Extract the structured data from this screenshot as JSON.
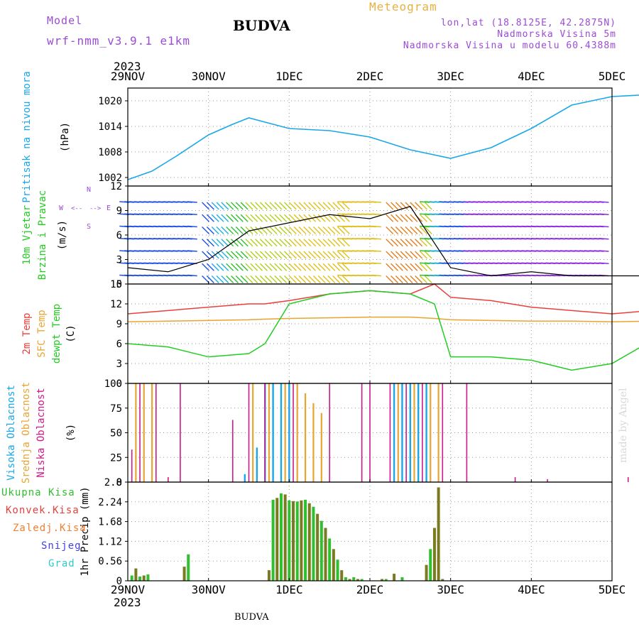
{
  "header": {
    "model_label": "Model",
    "model_name": "wrf-nmm_v3.9.1 e1km",
    "title": "BUDVA",
    "meteogram": "Meteogram",
    "lonlat": "lon,lat (18.8125E, 42.2875N)",
    "altitude": "Nadmorska Visina 5m",
    "model_altitude": "Nadmorska Visina u modelu 60.4388m",
    "year": "2023",
    "footer_title": "BUDVA",
    "credit": "made by Angel"
  },
  "colors": {
    "pressure": "#1aa7e8",
    "temp2m": "#e8403a",
    "sfc": "#e8a530",
    "dewpt": "#22cc22",
    "high": "#1aa7e8",
    "mid": "#e8a530",
    "low": "#cc1a8a",
    "ukupna": "#2fbf2f",
    "konvek": "#e8403a",
    "zaledj": "#f08030",
    "snijeg": "#4040e8",
    "grad": "#30c8c8",
    "precip_dark": "#7a7a20"
  },
  "time_axis": {
    "labels": [
      "29NOV",
      "30NOV",
      "1DEC",
      "2DEC",
      "3DEC",
      "4DEC",
      "5DEC"
    ]
  },
  "chart_data": [
    {
      "type": "line",
      "name": "pressure",
      "ylabel_1": "Pritisak na nivou mora",
      "ylabel_2": "(hPa)",
      "ylim": [
        1000,
        1023
      ],
      "yticks": [
        "1002",
        "1008",
        "1014",
        "1020"
      ],
      "ytick_values": [
        1002,
        1008,
        1014,
        1020
      ],
      "x": [
        0,
        0.3,
        0.6,
        1.0,
        1.3,
        1.5,
        1.8,
        2.0,
        2.5,
        3.0,
        3.5,
        4.0,
        4.5,
        5.0,
        5.5,
        6.0,
        6.5,
        6.8,
        7.0
      ],
      "series": [
        {
          "values": [
            1001.5,
            1003.5,
            1007,
            1012,
            1014.5,
            1016,
            1014.5,
            1013.5,
            1013,
            1011.5,
            1008.5,
            1006.5,
            1009,
            1013.5,
            1019,
            1021,
            1021.5,
            1020.5,
            1020.5
          ]
        }
      ]
    },
    {
      "type": "line",
      "name": "wind",
      "ylabel_1": "10m Vjetar",
      "ylabel_2": "Brzina i Pravac",
      "ylabel_3": "(m/s)",
      "compass": [
        "W",
        "<--",
        "-->",
        "E",
        "N",
        "S"
      ],
      "ylim": [
        0,
        12
      ],
      "yticks": [
        "0",
        "3",
        "6",
        "9",
        "12"
      ],
      "ytick_values": [
        0,
        3,
        6,
        9,
        12
      ],
      "x": [
        0,
        0.5,
        1.0,
        1.5,
        2.0,
        2.5,
        3.0,
        3.5,
        4.0,
        4.5,
        5.0,
        5.5,
        6.0,
        6.5,
        7.0
      ],
      "series": [
        {
          "values": [
            2,
            1.5,
            3,
            6.5,
            7.5,
            8.5,
            8,
            9.5,
            2,
            1,
            1.5,
            1,
            1,
            1,
            2.5
          ]
        }
      ]
    },
    {
      "type": "line",
      "name": "temperature",
      "ylabel_1": "2m Temp",
      "ylabel_2": "SFC Temp",
      "ylabel_3": "dewpt Temp",
      "ylabel_4": "(C)",
      "ylim": [
        0,
        15
      ],
      "yticks": [
        "0",
        "3",
        "6",
        "9",
        "12",
        "15"
      ],
      "ytick_values": [
        0,
        3,
        6,
        9,
        12,
        15
      ],
      "x": [
        0,
        0.5,
        1.0,
        1.5,
        1.7,
        2.0,
        2.5,
        3.0,
        3.5,
        3.8,
        4.0,
        4.5,
        5.0,
        5.5,
        6.0,
        6.5,
        7.0
      ],
      "series": [
        {
          "name": "2m Temp",
          "values": [
            10.5,
            11,
            11.5,
            12,
            12,
            12.5,
            13.5,
            14,
            13.5,
            15,
            13,
            12.5,
            11.5,
            11,
            10.5,
            11,
            10.5
          ]
        },
        {
          "name": "SFC Temp",
          "values": [
            9.3,
            9.4,
            9.5,
            9.6,
            9.7,
            9.8,
            9.9,
            10,
            10,
            9.8,
            9.6,
            9.5,
            9.4,
            9.4,
            9.3,
            9.4,
            9.3
          ]
        },
        {
          "name": "dewpt Temp",
          "values": [
            6,
            5.5,
            4,
            4.5,
            6,
            12,
            13.5,
            14,
            13.5,
            12,
            4,
            4,
            3.5,
            2,
            3,
            6.5,
            2
          ]
        }
      ]
    },
    {
      "type": "bar",
      "name": "cloud",
      "ylabel_1": "Visoka Oblacnost",
      "ylabel_2": "Srednja Oblacnost",
      "ylabel_3": "Niska Oblacnost",
      "ylabel_4": "(%)",
      "ylim": [
        0,
        100
      ],
      "yticks": [
        "0",
        "25",
        "50",
        "75",
        "100"
      ],
      "ytick_values": [
        0,
        25,
        50,
        75,
        100
      ],
      "series": [
        {
          "name": "Visoka Oblacnost",
          "x": [
            1.45,
            1.6,
            1.7,
            1.8,
            1.9,
            2.0,
            3.3,
            3.4,
            3.5,
            3.6,
            3.7
          ],
          "values": [
            8,
            35,
            100,
            100,
            100,
            100,
            100,
            100,
            100,
            100,
            100
          ]
        },
        {
          "name": "Srednja Oblacnost",
          "x": [
            0.1,
            0.2,
            0.3,
            1.55,
            1.75,
            1.95,
            2.1,
            2.2,
            2.3,
            2.4,
            3.35,
            3.55,
            3.75,
            3.85
          ],
          "values": [
            100,
            100,
            100,
            100,
            100,
            100,
            100,
            90,
            80,
            70,
            100,
            100,
            100,
            100
          ]
        },
        {
          "name": "Niska Oblacnost",
          "x": [
            0.05,
            0.15,
            0.35,
            0.5,
            0.65,
            1.3,
            1.5,
            1.7,
            2.05,
            2.5,
            2.9,
            3.0,
            3.25,
            3.45,
            3.65,
            3.9,
            4.2,
            4.8,
            5.2,
            6.2,
            6.5,
            6.7
          ],
          "values": [
            33,
            100,
            100,
            5,
            100,
            63,
            100,
            100,
            100,
            100,
            100,
            100,
            100,
            100,
            100,
            100,
            100,
            5,
            3,
            5,
            8,
            8
          ]
        }
      ]
    },
    {
      "type": "bar",
      "name": "precip",
      "ylabel_1": "1hr Precip (mm)",
      "legend": [
        "Ukupna Kisa",
        "Konvek.Kisa",
        "Zaledj.Kisa",
        "Snijeg",
        "Grad"
      ],
      "ylim": [
        0,
        2.8
      ],
      "yticks": [
        "0",
        "0.56",
        "1.12",
        "1.68",
        "2.24",
        "2.8"
      ],
      "ytick_values": [
        0,
        0.56,
        1.12,
        1.68,
        2.24,
        2.8
      ],
      "series": [
        {
          "name": "Ukupna Kisa",
          "x": [
            0.05,
            0.1,
            0.15,
            0.2,
            0.25,
            0.7,
            0.75,
            1.75,
            1.8,
            1.85,
            1.9,
            1.95,
            2.0,
            2.05,
            2.1,
            2.15,
            2.2,
            2.25,
            2.3,
            2.35,
            2.4,
            2.45,
            2.5,
            2.55,
            2.6,
            2.65,
            2.7,
            2.75,
            2.8,
            2.85,
            2.9,
            3.15,
            3.2,
            3.3,
            3.4,
            3.7,
            3.75,
            3.8,
            3.85,
            3.9
          ],
          "values": [
            0.15,
            0.35,
            0.12,
            0.15,
            0.18,
            0.4,
            0.75,
            0.3,
            2.3,
            2.35,
            2.48,
            2.45,
            2.28,
            2.26,
            2.25,
            2.28,
            2.3,
            2.2,
            2.1,
            1.9,
            1.7,
            1.5,
            1.2,
            0.9,
            0.6,
            0.3,
            0.1,
            0.05,
            0.1,
            0.05,
            0.05,
            0.05,
            0.05,
            0.2,
            0.1,
            0.45,
            0.9,
            1.5,
            2.65,
            0.05
          ]
        }
      ]
    }
  ]
}
